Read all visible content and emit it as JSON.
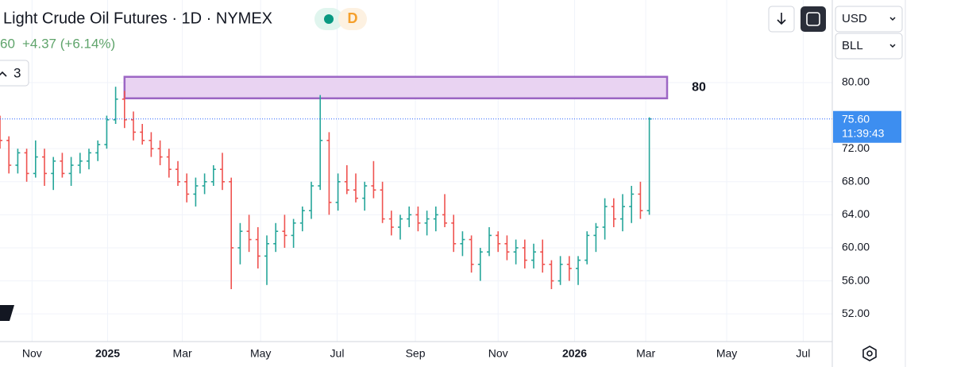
{
  "header": {
    "title": "Light Crude Oil Futures · 1D · NYMEX",
    "badge": "D",
    "price_partial": "60",
    "change": "+4.37 (+6.14%)",
    "indicator_count": "3"
  },
  "currency": "USD",
  "unit": "BLL",
  "chart_data": {
    "type": "ohlc",
    "up_color": "#26a69a",
    "down_color": "#ef5350",
    "open": [
      76,
      73,
      70,
      71.5,
      69,
      71,
      69,
      70.5,
      69,
      70,
      70.5,
      71.5,
      72.5,
      75.5,
      78,
      75.5,
      74,
      73,
      72,
      71,
      69.5,
      68,
      66.5,
      67.5,
      68,
      69.5,
      68,
      60,
      62,
      61,
      59,
      60.5,
      62,
      61.5,
      63,
      64.5,
      67.5,
      73,
      65.5,
      68,
      67,
      66,
      67.5,
      67,
      63.5,
      62.5,
      63.5,
      64,
      63,
      63.5,
      64,
      63,
      60.5,
      61,
      58,
      59.5,
      61.5,
      60.5,
      59.5,
      60,
      58.5,
      59.5,
      58,
      56,
      58,
      57.5,
      58.5,
      61.5,
      62.5,
      65,
      63.5,
      65,
      66.5,
      64.5
    ],
    "high": [
      76,
      73.5,
      72,
      72,
      73,
      72,
      71,
      71.5,
      71,
      71.5,
      72,
      73,
      76,
      79.5,
      79,
      76.5,
      75,
      74,
      73,
      72,
      70.5,
      69,
      68.5,
      69,
      70,
      71.5,
      68.5,
      63,
      64,
      62.5,
      61.5,
      63,
      64,
      63.5,
      65,
      68,
      78.5,
      74,
      69,
      70,
      69,
      68,
      70.5,
      68,
      64.5,
      64,
      65,
      65,
      64.5,
      65,
      66.5,
      64,
      62,
      61.5,
      60,
      62.5,
      62,
      61.5,
      61,
      61,
      60.5,
      61,
      58.5,
      59,
      59,
      59,
      62,
      63,
      66,
      66,
      66.5,
      67.5,
      68,
      75.8
    ],
    "low": [
      72,
      69,
      69,
      68,
      68.5,
      67.5,
      67,
      68.5,
      67.5,
      69,
      69.5,
      70.5,
      72,
      75,
      74.5,
      73,
      72.5,
      71,
      70,
      68.5,
      67.5,
      65.5,
      65,
      66.5,
      67.5,
      67,
      55,
      58,
      59.5,
      57.5,
      55.5,
      59.5,
      60,
      60,
      62,
      63.5,
      67,
      64,
      64.5,
      66.5,
      65.5,
      64.5,
      66,
      63,
      61.5,
      61,
      62.5,
      62,
      61.5,
      62,
      62.5,
      59.5,
      59,
      57,
      56,
      59,
      59.5,
      58.5,
      58,
      57.5,
      57.5,
      57,
      55,
      55.5,
      56,
      55.5,
      58,
      59.5,
      61,
      62.5,
      62,
      63,
      63.5,
      64
    ],
    "close": [
      73,
      70,
      71.5,
      69,
      71,
      69,
      70.5,
      69,
      70,
      70.5,
      71.5,
      72.5,
      75.5,
      78,
      75.5,
      74,
      73,
      72,
      71,
      69.5,
      68,
      66.5,
      67.5,
      68,
      69.5,
      68,
      60,
      62,
      61,
      59,
      60.5,
      62,
      61.5,
      63,
      64.5,
      67.5,
      73,
      65.5,
      68,
      67,
      66,
      67.5,
      67,
      63.5,
      62.5,
      63.5,
      64,
      63,
      63.5,
      64,
      63,
      60.5,
      61,
      58,
      59.5,
      61.5,
      60.5,
      59.5,
      60,
      58.5,
      59.5,
      58,
      56,
      58,
      57.5,
      58.5,
      61.5,
      62.5,
      65,
      63.5,
      65,
      66.5,
      64.5,
      75.6
    ],
    "xlim": [
      0,
      93.57
    ],
    "xticks": [
      {
        "value": 3.6,
        "label": "Nov"
      },
      {
        "value": 12.1,
        "label": "2025"
      },
      {
        "value": 20.5,
        "label": "Mar"
      },
      {
        "value": 29.3,
        "label": "May"
      },
      {
        "value": 37.9,
        "label": "Jul"
      },
      {
        "value": 46.7,
        "label": "Sep"
      },
      {
        "value": 56,
        "label": "Nov"
      },
      {
        "value": 64.6,
        "label": "2026"
      },
      {
        "value": 72.6,
        "label": "Mar"
      },
      {
        "value": 81.7,
        "label": "May"
      },
      {
        "value": 90.3,
        "label": "Jul"
      }
    ],
    "ylim": [
      48.65,
      90
    ],
    "yticks": [
      {
        "value": 80,
        "label": "80.00"
      },
      {
        "value": 72,
        "label": "72.00"
      },
      {
        "value": 68,
        "label": "68.00"
      },
      {
        "value": 64,
        "label": "64.00"
      },
      {
        "value": 60,
        "label": "60.00"
      },
      {
        "value": 56,
        "label": "56.00"
      },
      {
        "value": 52,
        "label": "52.00"
      }
    ],
    "grid": true,
    "zone": {
      "label": "80",
      "from": 14,
      "to": 75,
      "low": 78.1,
      "high": 80.7
    },
    "last_price": {
      "value": 75.6,
      "label": "75.60"
    },
    "countdown": "11:39:43"
  }
}
